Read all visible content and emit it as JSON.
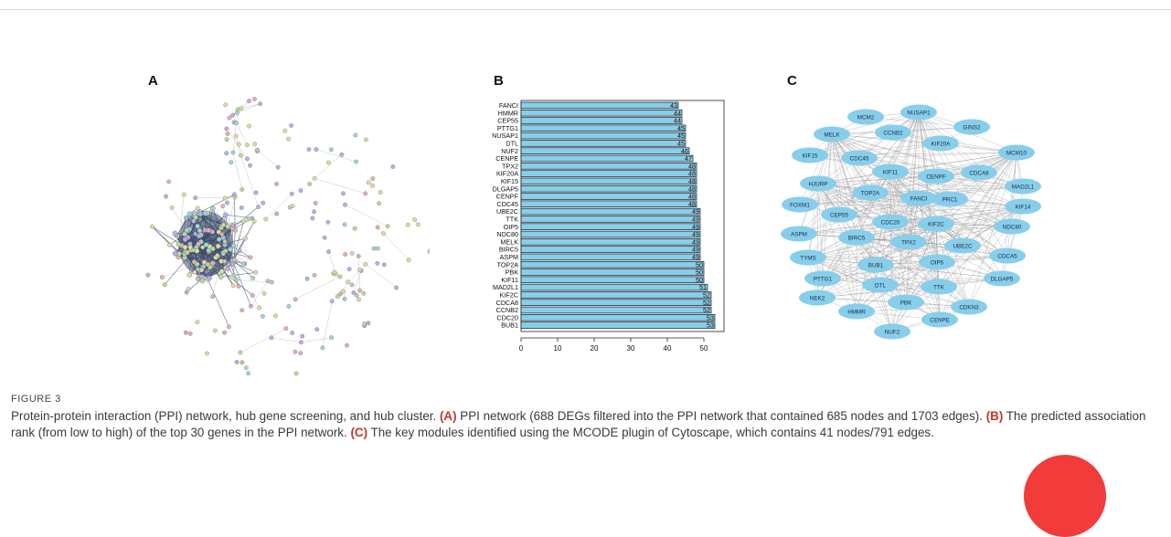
{
  "figure": {
    "label": "FIGURE 3",
    "panels": {
      "a": "A",
      "b": "B",
      "c": "C"
    },
    "caption": {
      "intro": "Protein-protein interaction (PPI) network, hub gene screening, and hub cluster.",
      "a_tag": "(A)",
      "a_text": "PPI network (688 DEGs filtered into the PPI network that contained 685 nodes and 1703 edges).",
      "b_tag": "(B)",
      "b_text": "The predicted association rank (from low to high) of the top 30 genes in the PPI network.",
      "c_tag": "(C)",
      "c_text": "The key modules identified using the MCODE plugin of Cytoscape, which contains 41 nodes/791 edges."
    }
  },
  "chart_data": {
    "type": "bar",
    "orientation": "horizontal",
    "categories": [
      "FANCI",
      "HMMR",
      "CEP55",
      "PTTG1",
      "NUSAP1",
      "DTL",
      "NUF2",
      "CENPE",
      "TPX2",
      "KIF20A",
      "KIF15",
      "DLGAP5",
      "CENPF",
      "CDC45",
      "UBE2C",
      "TTK",
      "OIP5",
      "NDC80",
      "MELK",
      "BIRC5",
      "ASPM",
      "TOP2A",
      "PBK",
      "KIF11",
      "MAD2L1",
      "KIF2C",
      "CDCA8",
      "CCNB2",
      "CDC20",
      "BUB1"
    ],
    "values": [
      43,
      44,
      44,
      45,
      45,
      45,
      46,
      47,
      48,
      48,
      48,
      48,
      48,
      48,
      49,
      49,
      49,
      49,
      49,
      49,
      49,
      50,
      50,
      50,
      51,
      52,
      52,
      52,
      53,
      53
    ],
    "xlim": [
      0,
      55
    ],
    "xticks": [
      0,
      10,
      20,
      30,
      40,
      50
    ],
    "bar_color": "#87ceeb",
    "data_labels": true
  },
  "network_c": {
    "nodes": [
      "NUSAP1",
      "MCM2",
      "GINS2",
      "MELK",
      "CCNB2",
      "KIF20A",
      "MCM10",
      "KIF15",
      "CDC45",
      "KIF11",
      "CENPF",
      "CDCA8",
      "HJURP",
      "MAD2L1",
      "TOP2A",
      "FANCI",
      "FOXM1",
      "PRC1",
      "KIF14",
      "CEP55",
      "CDC20",
      "KIF2C",
      "NDC80",
      "ASPM",
      "BIRC5",
      "TPX2",
      "UBE2C",
      "TYMS",
      "CDCA5",
      "BUB1",
      "OIP5",
      "PTTG1",
      "DLGAP5",
      "DTL",
      "TTK",
      "NEK2",
      "PBK",
      "CDKN3",
      "HMMR",
      "CENPE",
      "NUF2"
    ],
    "node_color": "#87ceeb",
    "edge_color": "#8a8a8a"
  },
  "network_a": {
    "cluster_color": "#3b4b6a",
    "node_colors": [
      "#a9b7e6",
      "#b8d99a",
      "#e7d6a3",
      "#c6a9e0",
      "#9fd5cf",
      "#e2b0b0",
      "#d4e0a0"
    ]
  }
}
